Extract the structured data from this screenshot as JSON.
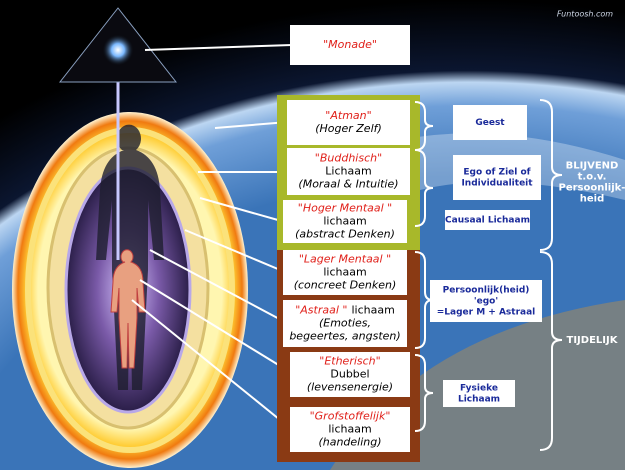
{
  "watermark": "Funtoosh.com",
  "monade": "\"Monade\"",
  "bodies": [
    {
      "rows": [
        [
          "\"Atman\""
        ],
        [
          "(Hoger Zelf)"
        ]
      ]
    },
    {
      "rows": [
        [
          "\"Buddhisch\""
        ],
        [
          "Lichaam"
        ],
        [
          "(Moraal & Intuitie)"
        ]
      ]
    },
    {
      "rows": [
        [
          "\"Hoger Mentaal \""
        ],
        [
          "lichaam"
        ],
        [
          "(abstract Denken)"
        ]
      ]
    },
    {
      "rows": [
        [
          "\"Lager Mentaal \""
        ],
        [
          "lichaam"
        ],
        [
          "(concreet Denken)"
        ]
      ]
    },
    {
      "rows": [
        [
          "\"Astraal \"",
          "lichaam"
        ],
        [
          "(Emoties,"
        ],
        [
          "begeertes, angsten)"
        ]
      ]
    },
    {
      "rows": [
        [
          "\"Etherisch\""
        ],
        [
          "Dubbel"
        ],
        [
          "(levensenergie)"
        ]
      ]
    },
    {
      "rows": [
        [
          "\"Grofstoffelijk\""
        ],
        [
          "lichaam"
        ],
        [
          "(handeling)"
        ]
      ]
    }
  ],
  "groups": [
    {
      "lines": [
        "Geest"
      ]
    },
    {
      "lines": [
        "Ego of Ziel of",
        "Individualiteit"
      ]
    },
    {
      "lines": [
        "Causaal Lichaam"
      ]
    },
    {
      "lines": [
        "Persoonlijk(heid)",
        "'ego'",
        "=Lager M + Astraal"
      ]
    },
    {
      "lines": [
        "Fysieke",
        "Lichaam"
      ]
    }
  ],
  "sides": [
    {
      "lines": [
        "BLIJVEND",
        "t.o.v.",
        "Persoonlijk-",
        "heid"
      ]
    },
    {
      "lines": [
        "TIJDELIJK"
      ]
    }
  ]
}
